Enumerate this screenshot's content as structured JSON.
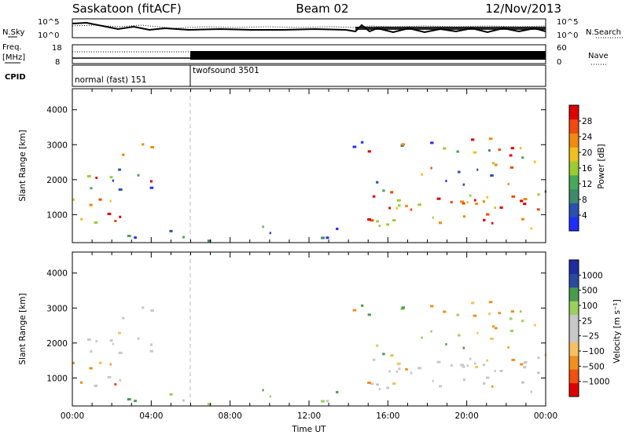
{
  "header": {
    "site": "Saskatoon (fitACF)",
    "beam": "Beam 02",
    "date": "12/Nov/2013"
  },
  "nsky_panel": {
    "left_label": "N.Sky",
    "right_label": "N.Search",
    "left_ticks": [
      "10^5",
      "10^0"
    ],
    "right_ticks": [
      "10^5",
      "10^0"
    ]
  },
  "freq_panel": {
    "left_label_line1": "Freq.",
    "left_label_line2": "[MHz]",
    "left_ticks": [
      "18",
      "8"
    ],
    "right_ticks": [
      "60",
      "0"
    ],
    "right_label": "Nave"
  },
  "cpid_panel": {
    "label": "CPID",
    "modes": [
      {
        "name": "normal (fast) 151"
      },
      {
        "name": "twofsound 3501"
      }
    ]
  },
  "colors": {
    "power_scale": [
      "#1f2dff",
      "#2c4fb0",
      "#3d8a6a",
      "#49a85a",
      "#9acd32",
      "#f0c020",
      "#f08a10",
      "#f04a10",
      "#e00000"
    ],
    "velocity_scale": [
      "#e00000",
      "#f05010",
      "#f09020",
      "#f7c060",
      "#c8c8c8",
      "#c8c8c8",
      "#9ad060",
      "#4a9a50",
      "#2a4aa0",
      "#1f2d9f"
    ]
  },
  "chart_data": [
    {
      "type": "heatmap",
      "panel": "power",
      "ylabel": "Slant Range [km]",
      "yticks": [
        "1000",
        "2000",
        "3000",
        "4000"
      ],
      "ylim": [
        200,
        4600
      ],
      "xlim": [
        "00:00",
        "24:00"
      ],
      "colorbar_title": "Power [dB]",
      "colorbar_ticks": [
        "4",
        "8",
        "12",
        "16",
        "20",
        "24",
        "28"
      ]
    },
    {
      "type": "heatmap",
      "panel": "velocity",
      "ylabel": "Slant Range [km]",
      "yticks": [
        "1000",
        "2000",
        "3000",
        "4000"
      ],
      "ylim": [
        200,
        4600
      ],
      "xlabel": "Time UT",
      "xticks": [
        "00:00",
        "04:00",
        "08:00",
        "12:00",
        "16:00",
        "20:00",
        "00:00"
      ],
      "colorbar_title": "Velocity [m s⁻¹]",
      "colorbar_ticks": [
        "1000",
        "500",
        "100",
        "25",
        "−25",
        "−100",
        "−500",
        "−1000"
      ]
    }
  ]
}
